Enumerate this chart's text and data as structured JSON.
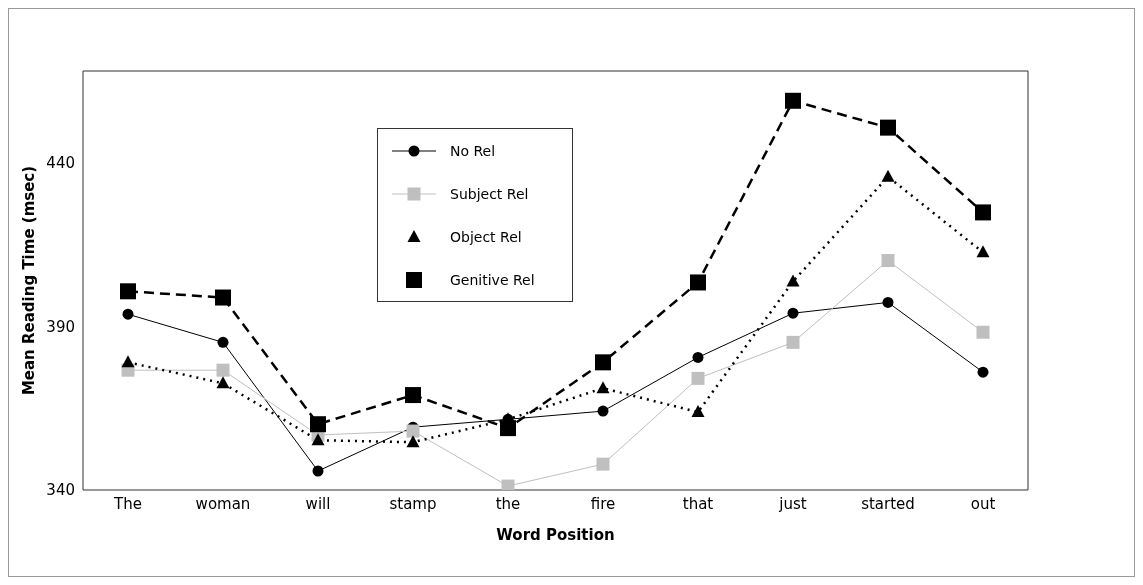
{
  "chart_data": {
    "type": "line",
    "xlabel": "Word Position",
    "ylabel": "Mean Reading Time (msec)",
    "categories": [
      "The",
      "woman",
      "will",
      "stamp",
      "the",
      "fire",
      "that",
      "just",
      "started",
      "out"
    ],
    "ylim": [
      340,
      468
    ],
    "yticks": [
      340,
      390,
      440
    ],
    "grid": false,
    "legend": "top left",
    "series": [
      {
        "name": "No Rel",
        "color": "#000000",
        "marker": "circle",
        "line_style": "solid",
        "values": [
          393.7,
          385.1,
          345.8,
          359.2,
          361.6,
          364.1,
          380.5,
          394,
          397.3,
          376
        ]
      },
      {
        "name": "Subject Rel",
        "color": "#bfbfbf",
        "marker": "square",
        "line_style": "solid",
        "values": [
          376.6,
          376.6,
          356.8,
          358,
          341.2,
          347.9,
          374.1,
          385.1,
          410.1,
          388.2
        ]
      },
      {
        "name": "Object Rel",
        "color": "#000000",
        "marker": "triangle",
        "line_style": "dotted",
        "values": [
          379,
          372.6,
          355.2,
          354.6,
          361.6,
          371.1,
          363.8,
          403.7,
          435.7,
          412.6
        ]
      },
      {
        "name": "Genitive Rel",
        "color": "#000000",
        "marker": "square",
        "line_style": "dashed",
        "values": [
          400.7,
          398.8,
          360.1,
          369,
          358.9,
          379,
          403.4,
          458.9,
          450.7,
          424.8
        ]
      }
    ]
  }
}
